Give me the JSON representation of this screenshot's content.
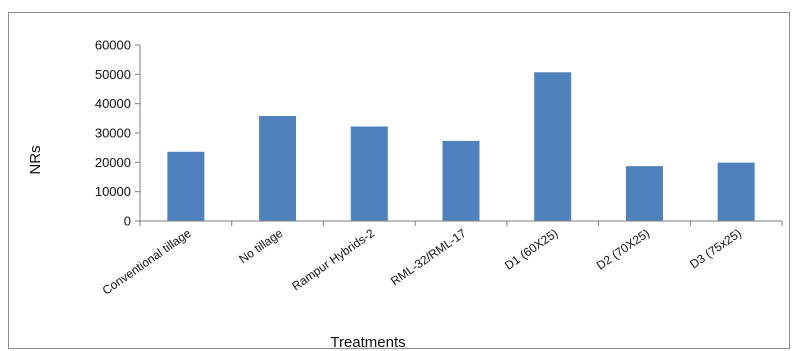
{
  "colors": {
    "bar": "#4f81bd",
    "axis": "#7f7f7f",
    "frame": "#8c8c8c"
  },
  "chart_data": {
    "type": "bar",
    "categories": [
      "Conventional tillage",
      "No tillage",
      "Rampur Hybrids-2",
      "RML-32/RML-17",
      "D1 (60X25)",
      "D2 (70X25)",
      "D3 (75x25)"
    ],
    "series": [
      {
        "values": [
          23600,
          35800,
          32200,
          27300,
          50700,
          18700,
          19900
        ]
      }
    ],
    "title": "",
    "xlabel": "Treatments",
    "ylabel": "NRs",
    "ylim": [
      0,
      60000
    ],
    "yticks": [
      0,
      10000,
      20000,
      30000,
      40000,
      50000,
      60000
    ],
    "grid": false,
    "legend": "none"
  }
}
